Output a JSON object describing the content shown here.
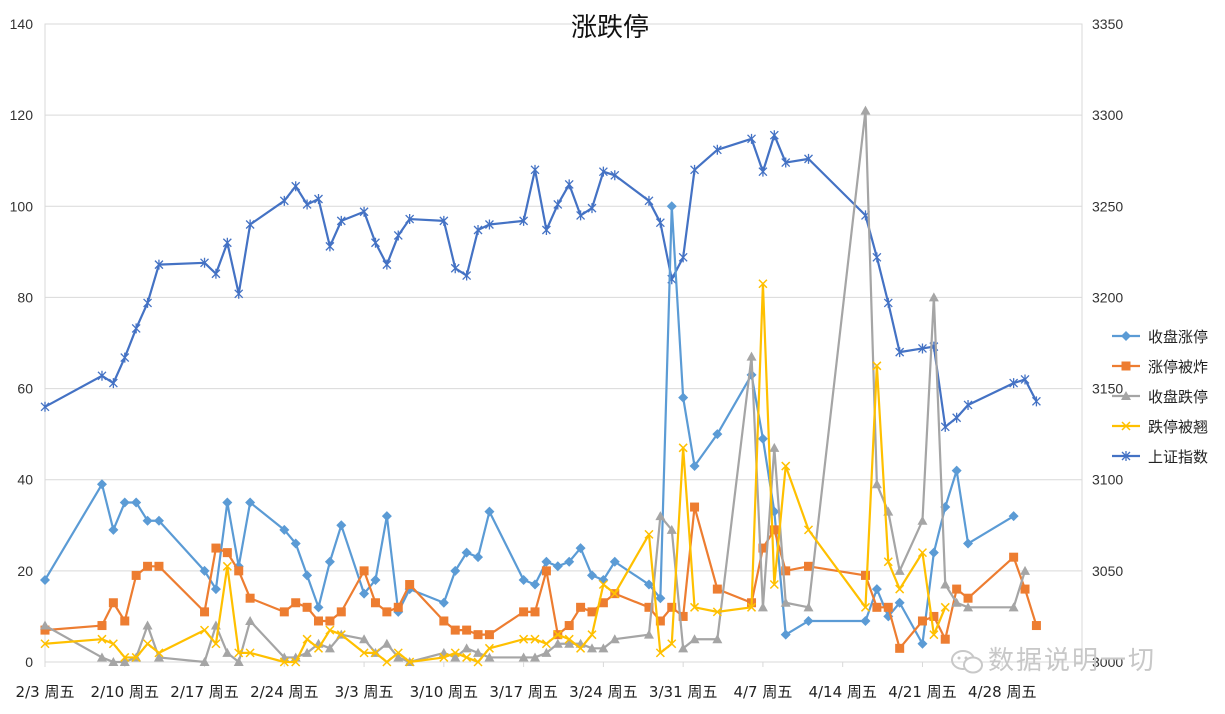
{
  "chart_data": {
    "type": "line",
    "title": "涨跌停",
    "x_tick_labels": [
      "2/3 周五",
      "2/10 周五",
      "2/17 周五",
      "2/24 周五",
      "3/3 周五",
      "3/10 周五",
      "3/17 周五",
      "3/24 周五",
      "3/31 周五",
      "4/7 周五",
      "4/14 周五",
      "4/21 周五",
      "4/28 周五"
    ],
    "x_range_days": [
      0,
      91
    ],
    "y_left": {
      "min": 0,
      "max": 140,
      "step": 20
    },
    "y_right": {
      "min": 3000,
      "max": 3350,
      "step": 50
    },
    "grid": true,
    "legend_position": "right",
    "x_days": [
      0,
      5,
      6,
      7,
      8,
      9,
      10,
      14,
      15,
      16,
      17,
      18,
      21,
      22,
      23,
      24,
      25,
      26,
      28,
      29,
      30,
      31,
      32,
      35,
      36,
      37,
      38,
      39,
      42,
      43,
      44,
      45,
      46,
      47,
      48,
      49,
      50,
      53,
      54,
      55,
      56,
      57,
      59,
      62,
      63,
      64,
      65,
      67,
      72,
      73,
      74,
      75,
      77,
      78,
      79,
      80,
      81,
      85,
      86,
      87,
      88,
      89
    ],
    "series": [
      {
        "name": "收盘涨停",
        "color": "#5b9bd5",
        "marker": "diamond",
        "axis": "left",
        "values": [
          18,
          39,
          29,
          35,
          35,
          31,
          31,
          20,
          16,
          35,
          21,
          35,
          29,
          26,
          19,
          12,
          22,
          30,
          15,
          18,
          32,
          11,
          16,
          13,
          20,
          24,
          23,
          33,
          18,
          17,
          22,
          21,
          22,
          25,
          19,
          18,
          22,
          17,
          14,
          100,
          58,
          43,
          50,
          63,
          49,
          33,
          6,
          9,
          9,
          16,
          10,
          13,
          4,
          24,
          34,
          42,
          26,
          32,
          null,
          null,
          null,
          null
        ],
        "note_x": "uses x_days by index"
      },
      {
        "name": "涨停被炸",
        "color": "#ed7d31",
        "marker": "square",
        "axis": "left",
        "values": [
          7,
          8,
          13,
          9,
          19,
          21,
          21,
          11,
          25,
          24,
          20,
          14,
          11,
          13,
          12,
          9,
          9,
          11,
          20,
          13,
          11,
          12,
          17,
          9,
          7,
          7,
          6,
          6,
          11,
          11,
          20,
          6,
          8,
          12,
          11,
          13,
          15,
          12,
          9,
          12,
          10,
          34,
          16,
          13,
          25,
          29,
          20,
          21,
          19,
          12,
          12,
          3,
          9,
          10,
          5,
          16,
          14,
          23,
          16,
          8,
          null,
          null
        ]
      },
      {
        "name": "收盘跌停",
        "color": "#a5a5a5",
        "marker": "triangle",
        "axis": "left",
        "values": [
          8,
          1,
          0,
          0,
          1,
          8,
          1,
          0,
          8,
          2,
          0,
          9,
          1,
          1,
          2,
          4,
          3,
          6,
          5,
          2,
          4,
          1,
          0,
          2,
          1,
          3,
          2,
          1,
          1,
          1,
          2,
          4,
          4,
          4,
          3,
          3,
          5,
          6,
          32,
          29,
          3,
          5,
          5,
          67,
          12,
          47,
          13,
          12,
          121,
          39,
          33,
          20,
          31,
          80,
          17,
          13,
          12,
          12,
          20,
          null,
          null,
          null
        ]
      },
      {
        "name": "跌停被翘",
        "color": "#ffc000",
        "marker": "x",
        "axis": "left",
        "values": [
          4,
          5,
          4,
          1,
          1,
          4,
          2,
          7,
          4,
          21,
          2,
          2,
          0,
          0,
          5,
          3,
          7,
          6,
          2,
          2,
          0,
          2,
          0,
          1,
          2,
          1,
          0,
          3,
          5,
          5,
          4,
          6,
          5,
          3,
          6,
          17,
          15,
          28,
          2,
          4,
          47,
          12,
          11,
          12,
          83,
          17,
          43,
          29,
          12,
          65,
          22,
          16,
          24,
          6,
          12,
          null,
          null,
          null,
          null,
          null,
          null,
          null
        ]
      },
      {
        "name": "上证指数",
        "color": "#4472c4",
        "marker": "asterisk",
        "axis": "right",
        "values": [
          3140,
          3157,
          3153,
          3167,
          3183,
          3197,
          3218,
          3219,
          3213,
          3230,
          3202,
          3240,
          3253,
          3261,
          3251,
          3254,
          3228,
          3242,
          3247,
          3230,
          3218,
          3234,
          3243,
          3242,
          3216,
          3212,
          3237,
          3240,
          3242,
          3270,
          3237,
          3251,
          3262,
          3245,
          3249,
          3269,
          3267,
          3253,
          3241,
          3210,
          3222,
          3270,
          3281,
          3287,
          3269,
          3289,
          3274,
          3276,
          3245,
          3222,
          3197,
          3170,
          3172,
          3173,
          3129,
          3134,
          3141,
          3153,
          3155,
          3143,
          null,
          null
        ]
      }
    ]
  },
  "legend": {
    "items": [
      "收盘涨停",
      "涨停被炸",
      "收盘跌停",
      "跌停被翘",
      "上证指数"
    ]
  },
  "watermark": {
    "text": "数据说明一切"
  }
}
